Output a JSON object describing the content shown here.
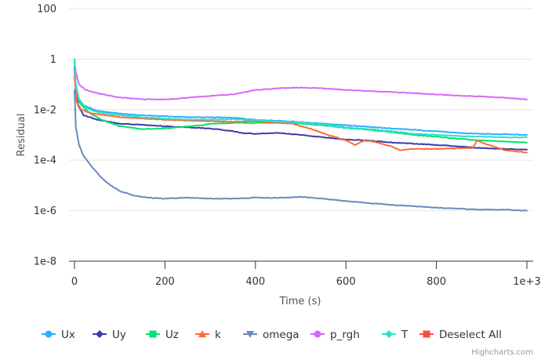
{
  "chart_data": {
    "type": "line",
    "title": "",
    "xlabel": "Time (s)",
    "ylabel": "Residual",
    "yscale": "log",
    "ylim": [
      1e-08,
      100
    ],
    "xlim": [
      0,
      1000
    ],
    "x_ticks": [
      {
        "value": 0,
        "label": "0"
      },
      {
        "value": 200,
        "label": "200"
      },
      {
        "value": 400,
        "label": "400"
      },
      {
        "value": 600,
        "label": "600"
      },
      {
        "value": 800,
        "label": "800"
      },
      {
        "value": 1000,
        "label": "1e+3"
      }
    ],
    "y_ticks": [
      {
        "value": 100,
        "label": "100"
      },
      {
        "value": 1,
        "label": "1"
      },
      {
        "value": 0.01,
        "label": "1e-2"
      },
      {
        "value": 0.0001,
        "label": "1e-4"
      },
      {
        "value": 1e-06,
        "label": "1e-6"
      },
      {
        "value": 1e-08,
        "label": "1e-8"
      }
    ],
    "grid": true,
    "legend_position": "bottom",
    "series": [
      {
        "name": "Ux",
        "color": "#2caffe",
        "symbol": "circle",
        "points": [
          [
            0,
            1.0
          ],
          [
            3,
            0.1
          ],
          [
            8,
            0.03
          ],
          [
            20,
            0.015
          ],
          [
            50,
            0.009
          ],
          [
            100,
            0.007
          ],
          [
            150,
            0.006
          ],
          [
            200,
            0.0055
          ],
          [
            250,
            0.005
          ],
          [
            300,
            0.005
          ],
          [
            350,
            0.0048
          ],
          [
            400,
            0.004
          ],
          [
            450,
            0.0036
          ],
          [
            500,
            0.0032
          ],
          [
            550,
            0.0028
          ],
          [
            600,
            0.0024
          ],
          [
            650,
            0.0021
          ],
          [
            700,
            0.0018
          ],
          [
            750,
            0.0016
          ],
          [
            800,
            0.0014
          ],
          [
            850,
            0.0012
          ],
          [
            900,
            0.0011
          ],
          [
            950,
            0.00105
          ],
          [
            1000,
            0.001
          ]
        ]
      },
      {
        "name": "Uy",
        "color": "#3c3ca8",
        "symbol": "diamond",
        "points": [
          [
            0,
            0.5
          ],
          [
            3,
            0.05
          ],
          [
            8,
            0.015
          ],
          [
            20,
            0.006
          ],
          [
            50,
            0.004
          ],
          [
            100,
            0.0028
          ],
          [
            150,
            0.0025
          ],
          [
            200,
            0.0022
          ],
          [
            250,
            0.002
          ],
          [
            300,
            0.0018
          ],
          [
            350,
            0.0014
          ],
          [
            370,
            0.0012
          ],
          [
            400,
            0.0011
          ],
          [
            450,
            0.0012
          ],
          [
            500,
            0.001
          ],
          [
            550,
            0.0008
          ],
          [
            600,
            0.00065
          ],
          [
            650,
            0.0006
          ],
          [
            700,
            0.0005
          ],
          [
            750,
            0.00045
          ],
          [
            800,
            0.0004
          ],
          [
            850,
            0.00035
          ],
          [
            900,
            0.0003
          ],
          [
            950,
            0.00028
          ],
          [
            1000,
            0.00026
          ]
        ]
      },
      {
        "name": "Uz",
        "color": "#00e272",
        "symbol": "square",
        "points": [
          [
            0,
            1.0
          ],
          [
            3,
            0.1
          ],
          [
            10,
            0.02
          ],
          [
            30,
            0.008
          ],
          [
            60,
            0.004
          ],
          [
            100,
            0.0022
          ],
          [
            150,
            0.0017
          ],
          [
            200,
            0.0018
          ],
          [
            230,
            0.002
          ],
          [
            270,
            0.0023
          ],
          [
            300,
            0.0027
          ],
          [
            350,
            0.003
          ],
          [
            400,
            0.003
          ],
          [
            450,
            0.003
          ],
          [
            500,
            0.0028
          ],
          [
            550,
            0.0024
          ],
          [
            600,
            0.0019
          ],
          [
            650,
            0.0016
          ],
          [
            700,
            0.0013
          ],
          [
            750,
            0.001
          ],
          [
            800,
            0.00085
          ],
          [
            850,
            0.0007
          ],
          [
            900,
            0.0006
          ],
          [
            950,
            0.00055
          ],
          [
            1000,
            0.0005
          ]
        ]
      },
      {
        "name": "k",
        "color": "#fe6a35",
        "symbol": "triangle",
        "points": [
          [
            0,
            0.2
          ],
          [
            5,
            0.02
          ],
          [
            15,
            0.01
          ],
          [
            40,
            0.007
          ],
          [
            70,
            0.006
          ],
          [
            100,
            0.005
          ],
          [
            150,
            0.0045
          ],
          [
            200,
            0.004
          ],
          [
            250,
            0.0037
          ],
          [
            300,
            0.0035
          ],
          [
            350,
            0.0033
          ],
          [
            400,
            0.0035
          ],
          [
            450,
            0.003
          ],
          [
            480,
            0.0028
          ],
          [
            520,
            0.0018
          ],
          [
            560,
            0.001
          ],
          [
            600,
            0.0006
          ],
          [
            620,
            0.0004
          ],
          [
            640,
            0.0006
          ],
          [
            660,
            0.00055
          ],
          [
            700,
            0.00035
          ],
          [
            720,
            0.00025
          ],
          [
            750,
            0.00028
          ],
          [
            800,
            0.00028
          ],
          [
            850,
            0.0003
          ],
          [
            880,
            0.0003
          ],
          [
            890,
            0.0006
          ],
          [
            900,
            0.0005
          ],
          [
            950,
            0.00025
          ],
          [
            1000,
            0.0002
          ]
        ]
      },
      {
        "name": "omega",
        "color": "#6b8abc",
        "symbol": "triangle-down",
        "points": [
          [
            0,
            0.06
          ],
          [
            3,
            0.002
          ],
          [
            10,
            0.0004
          ],
          [
            20,
            0.00015
          ],
          [
            40,
            5e-05
          ],
          [
            60,
            2e-05
          ],
          [
            80,
            1e-05
          ],
          [
            100,
            6e-06
          ],
          [
            130,
            4e-06
          ],
          [
            160,
            3.3e-06
          ],
          [
            200,
            3e-06
          ],
          [
            250,
            3.3e-06
          ],
          [
            300,
            3e-06
          ],
          [
            350,
            3e-06
          ],
          [
            400,
            3.3e-06
          ],
          [
            450,
            3.2e-06
          ],
          [
            500,
            3.5e-06
          ],
          [
            550,
            3e-06
          ],
          [
            600,
            2.4e-06
          ],
          [
            650,
            2e-06
          ],
          [
            700,
            1.7e-06
          ],
          [
            750,
            1.5e-06
          ],
          [
            800,
            1.3e-06
          ],
          [
            850,
            1.2e-06
          ],
          [
            900,
            1.1e-06
          ],
          [
            950,
            1.1e-06
          ],
          [
            1000,
            1e-06
          ]
        ]
      },
      {
        "name": "p_rgh",
        "color": "#d568fb",
        "symbol": "circle",
        "points": [
          [
            0,
            0.8
          ],
          [
            3,
            0.3
          ],
          [
            10,
            0.1
          ],
          [
            25,
            0.06
          ],
          [
            50,
            0.045
          ],
          [
            100,
            0.03
          ],
          [
            150,
            0.026
          ],
          [
            200,
            0.025
          ],
          [
            250,
            0.03
          ],
          [
            300,
            0.035
          ],
          [
            350,
            0.04
          ],
          [
            400,
            0.06
          ],
          [
            450,
            0.07
          ],
          [
            500,
            0.075
          ],
          [
            550,
            0.07
          ],
          [
            600,
            0.06
          ],
          [
            650,
            0.055
          ],
          [
            700,
            0.05
          ],
          [
            750,
            0.045
          ],
          [
            800,
            0.04
          ],
          [
            850,
            0.036
          ],
          [
            900,
            0.033
          ],
          [
            950,
            0.03
          ],
          [
            1000,
            0.025
          ]
        ]
      },
      {
        "name": "T",
        "color": "#2ee0ca",
        "symbol": "diamond",
        "points": [
          [
            0,
            1.0
          ],
          [
            3,
            0.1
          ],
          [
            10,
            0.025
          ],
          [
            25,
            0.012
          ],
          [
            50,
            0.008
          ],
          [
            100,
            0.006
          ],
          [
            150,
            0.005
          ],
          [
            200,
            0.0045
          ],
          [
            250,
            0.004
          ],
          [
            300,
            0.004
          ],
          [
            350,
            0.0042
          ],
          [
            400,
            0.0038
          ],
          [
            450,
            0.0034
          ],
          [
            500,
            0.003
          ],
          [
            550,
            0.0026
          ],
          [
            600,
            0.002
          ],
          [
            650,
            0.0017
          ],
          [
            700,
            0.0014
          ],
          [
            750,
            0.0011
          ],
          [
            800,
            0.001
          ],
          [
            850,
            0.0009
          ],
          [
            900,
            0.00085
          ],
          [
            950,
            0.0008
          ],
          [
            1000,
            0.0008
          ]
        ]
      }
    ],
    "legend": [
      {
        "label": "Ux",
        "color": "#2caffe",
        "symbol": "circle"
      },
      {
        "label": "Uy",
        "color": "#3c3ca8",
        "symbol": "diamond"
      },
      {
        "label": "Uz",
        "color": "#00e272",
        "symbol": "square"
      },
      {
        "label": "k",
        "color": "#fe6a35",
        "symbol": "triangle"
      },
      {
        "label": "omega",
        "color": "#6b8abc",
        "symbol": "triangle-down"
      },
      {
        "label": "p_rgh",
        "color": "#d568fb",
        "symbol": "circle"
      },
      {
        "label": "T",
        "color": "#2ee0ca",
        "symbol": "diamond"
      },
      {
        "label": "Deselect All",
        "color": "#fa4b42",
        "symbol": "square"
      }
    ]
  },
  "credits": "Highcharts.com"
}
